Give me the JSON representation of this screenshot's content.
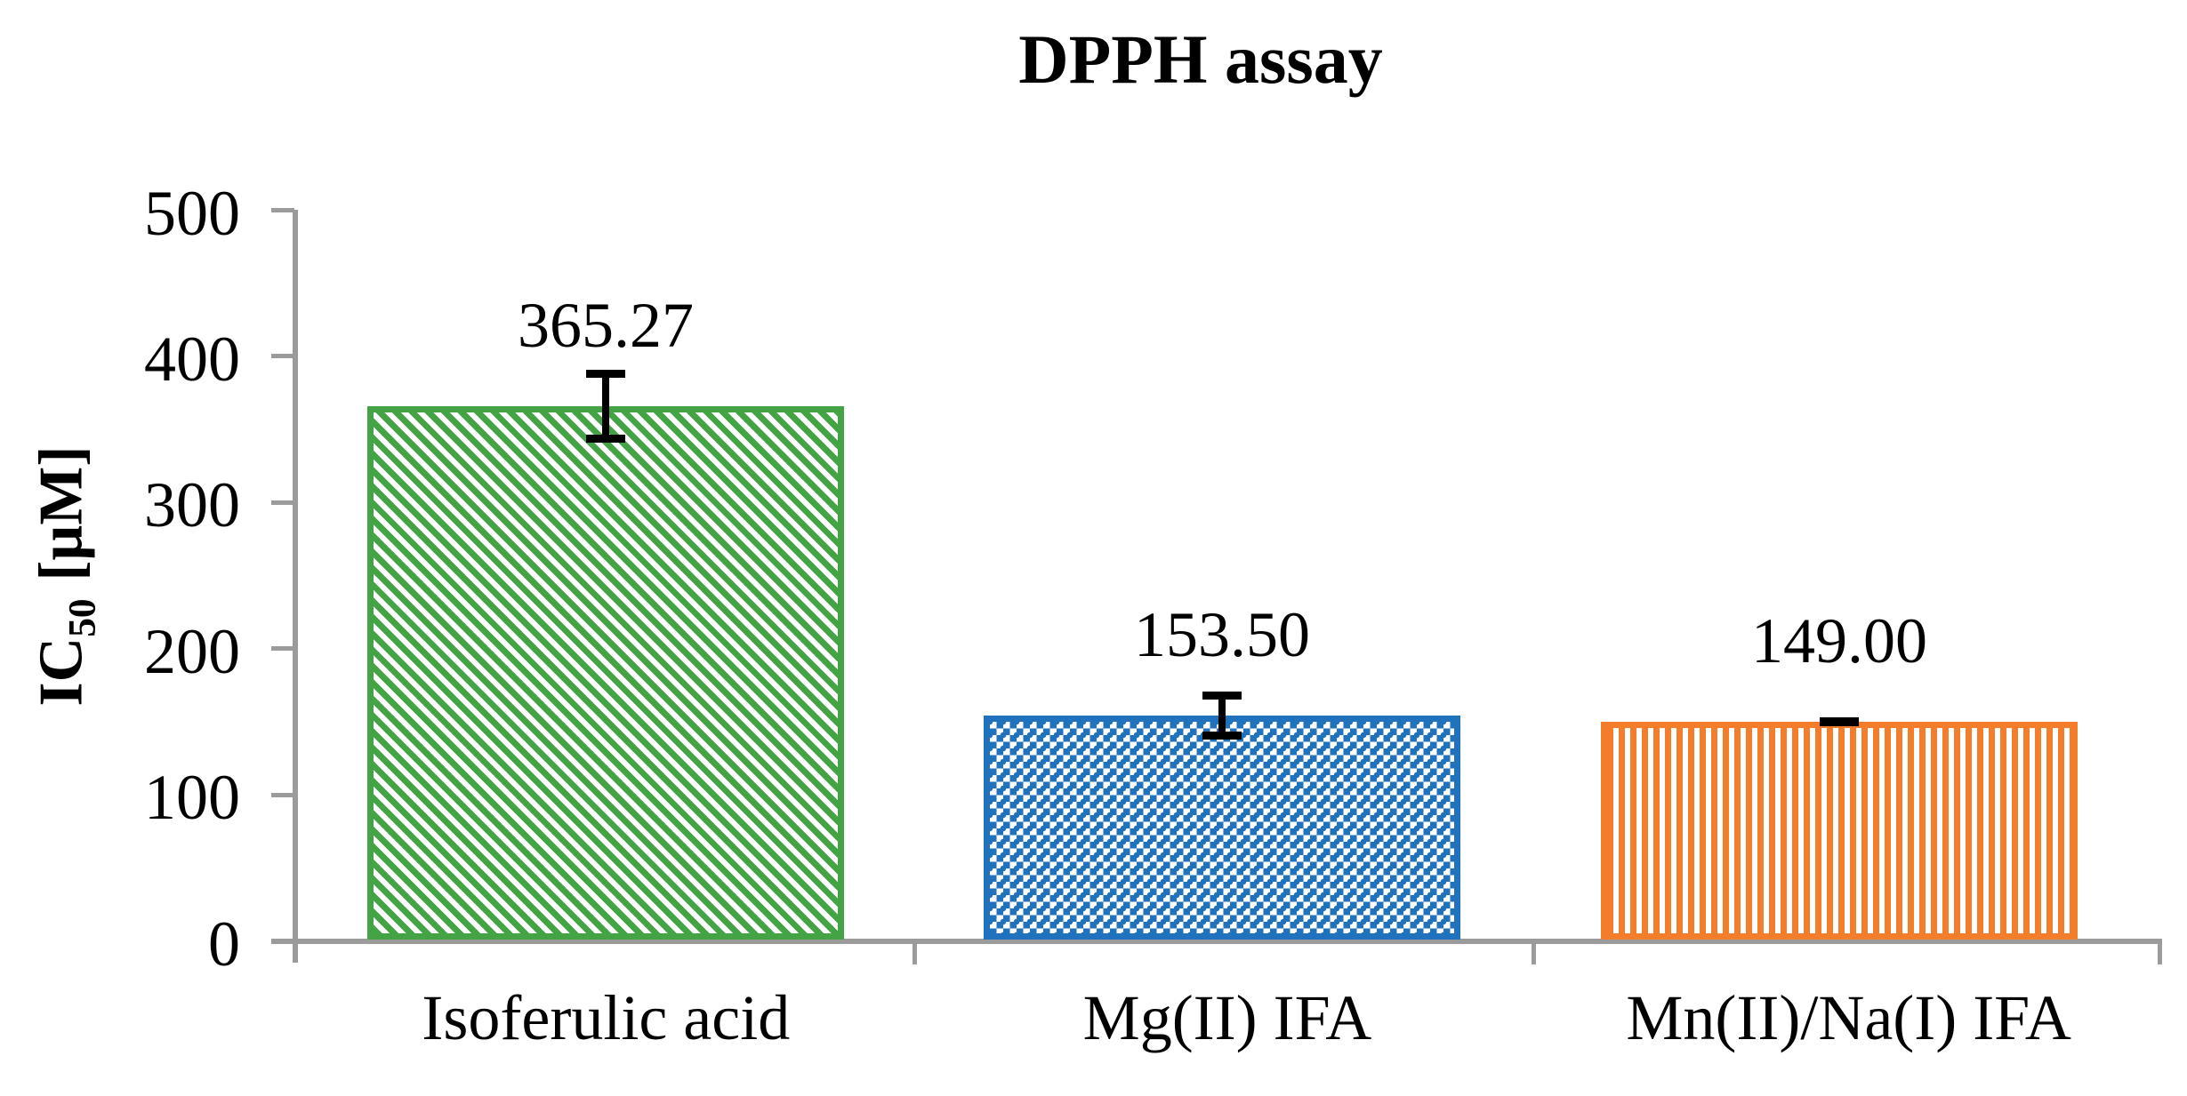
{
  "title": "DPPH assay",
  "y_axis": {
    "label_main": "IC",
    "label_sub": "50",
    "label_unit": "[μM]",
    "tick_labels_top_to_bottom": [
      "500",
      "400",
      "300",
      "200",
      "100",
      "0"
    ]
  },
  "chart_data": {
    "type": "bar",
    "title": "DPPH assay",
    "xlabel": "",
    "ylabel": "IC50 [μM]",
    "ylim": [
      0,
      500
    ],
    "yticks": [
      0,
      100,
      200,
      300,
      400,
      500
    ],
    "grid": false,
    "legend": "none",
    "categories": [
      "Isoferulic acid",
      "Mg(II) IFA",
      "Mn(II)/Na(I) IFA"
    ],
    "values": [
      365.27,
      153.5,
      149.0
    ],
    "value_labels": [
      "365.27",
      "153.50",
      "149.00"
    ],
    "error_bars": [
      25,
      16.5,
      1.5
    ],
    "bar_colors": [
      "#44a345",
      "#2172bd",
      "#f47d2b"
    ],
    "bar_patterns": [
      "diagonal-stripes",
      "dotted-diamond-checker",
      "vertical-stripes"
    ],
    "axis_color": "#9b9b9b",
    "text_color": "#000000"
  }
}
